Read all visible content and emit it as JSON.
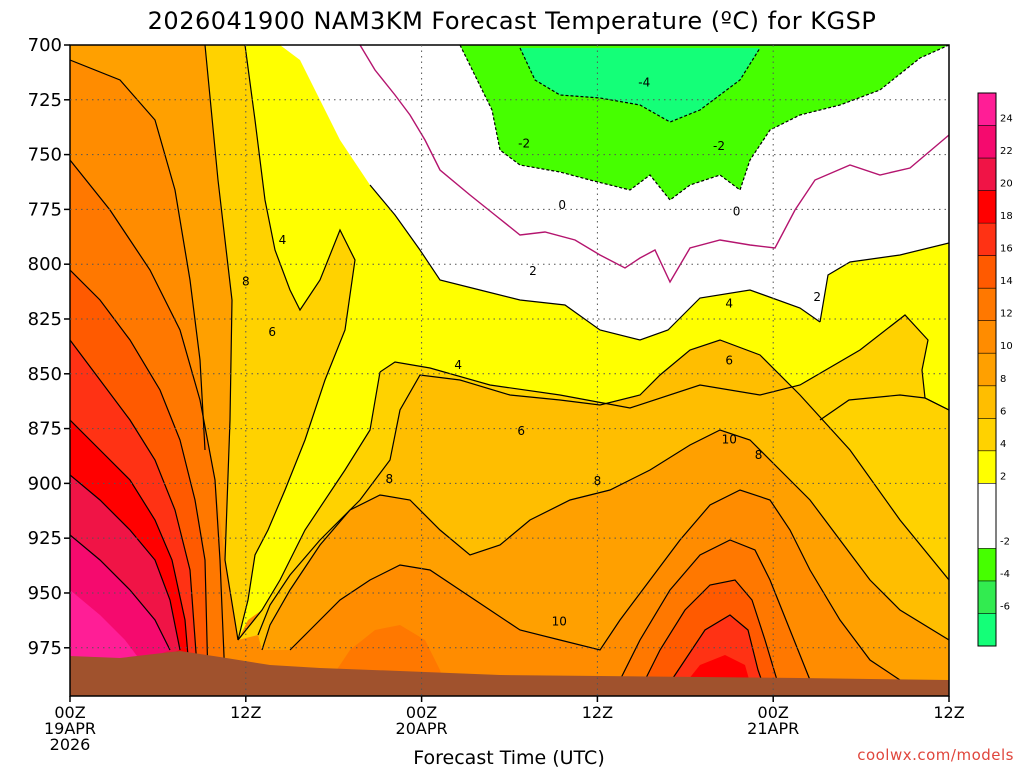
{
  "chart_data": {
    "type": "heatmap",
    "title": "2026041900 NAM3KM Forecast Temperature (ºC) for KGSP",
    "xlabel": "Forecast Time (UTC)",
    "ylabel": "",
    "credit": "coolwx.com/models",
    "x_range_hours": [
      0,
      60
    ],
    "y_range_hpa": [
      700,
      997
    ],
    "y_ticks": [
      700,
      725,
      750,
      775,
      800,
      825,
      850,
      875,
      900,
      925,
      950,
      975
    ],
    "x_ticks": [
      {
        "hour": 0,
        "labels": [
          "00Z",
          "19APR",
          "2026"
        ]
      },
      {
        "hour": 12,
        "labels": [
          "12Z"
        ]
      },
      {
        "hour": 24,
        "labels": [
          "00Z",
          "20APR"
        ]
      },
      {
        "hour": 36,
        "labels": [
          "12Z"
        ]
      },
      {
        "hour": 48,
        "labels": [
          "00Z",
          "21APR"
        ]
      },
      {
        "hour": 60,
        "labels": [
          "12Z"
        ]
      }
    ],
    "colorbar": {
      "labels": [
        "24",
        "22",
        "20",
        "18",
        "16",
        "14",
        "12",
        "10",
        "8",
        "6",
        "4",
        "2",
        "-2",
        "-4",
        "-6"
      ],
      "bands": [
        {
          "min": 24,
          "max": 26,
          "color": "#ff1e96"
        },
        {
          "min": 22,
          "max": 24,
          "color": "#f50a6e"
        },
        {
          "min": 20,
          "max": 22,
          "color": "#f01446"
        },
        {
          "min": 18,
          "max": 20,
          "color": "#ff0000"
        },
        {
          "min": 16,
          "max": 18,
          "color": "#ff3214"
        },
        {
          "min": 14,
          "max": 16,
          "color": "#ff5a00"
        },
        {
          "min": 12,
          "max": 14,
          "color": "#ff7800"
        },
        {
          "min": 10,
          "max": 12,
          "color": "#ff8c00"
        },
        {
          "min": 8,
          "max": 10,
          "color": "#ffa000"
        },
        {
          "min": 6,
          "max": 8,
          "color": "#ffbe00"
        },
        {
          "min": 4,
          "max": 6,
          "color": "#ffd200"
        },
        {
          "min": 2,
          "max": 4,
          "color": "#ffff00"
        },
        {
          "min": -2,
          "max": 2,
          "color": "#ffffff"
        },
        {
          "min": -4,
          "max": -2,
          "color": "#46ff00"
        },
        {
          "min": -6,
          "max": -4,
          "color": "#32eb50"
        },
        {
          "min": -8,
          "max": -6,
          "color": "#14ff78"
        }
      ]
    },
    "contour_labels": [
      {
        "text": "4",
        "hour": 14.5,
        "hpa": 789
      },
      {
        "text": "8",
        "hour": 12.0,
        "hpa": 808
      },
      {
        "text": "6",
        "hour": 13.8,
        "hpa": 831
      },
      {
        "text": "4",
        "hour": 26.5,
        "hpa": 846
      },
      {
        "text": "6",
        "hour": 30.8,
        "hpa": 876
      },
      {
        "text": "8",
        "hour": 21.8,
        "hpa": 898
      },
      {
        "text": "8",
        "hour": 36.0,
        "hpa": 899
      },
      {
        "text": "10",
        "hour": 33.4,
        "hpa": 963
      },
      {
        "text": "2",
        "hour": 31.6,
        "hpa": 803
      },
      {
        "text": "0",
        "hour": 33.6,
        "hpa": 773
      },
      {
        "text": "0",
        "hour": 45.5,
        "hpa": 776
      },
      {
        "text": "-2",
        "hour": 31.0,
        "hpa": 745
      },
      {
        "text": "-2",
        "hour": 44.3,
        "hpa": 746
      },
      {
        "text": "-4",
        "hour": 39.2,
        "hpa": 717
      },
      {
        "text": "4",
        "hour": 45.0,
        "hpa": 818
      },
      {
        "text": "6",
        "hour": 45.0,
        "hpa": 844
      },
      {
        "text": "10",
        "hour": 45.0,
        "hpa": 880
      },
      {
        "text": "8",
        "hour": 47.0,
        "hpa": 887
      },
      {
        "text": "2",
        "hour": 51.0,
        "hpa": 815
      }
    ]
  }
}
